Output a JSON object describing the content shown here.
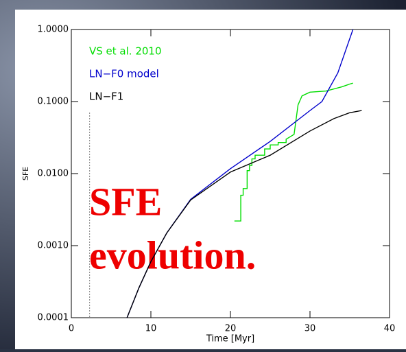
{
  "chart_data": {
    "type": "line",
    "xlabel": "Time [Myr]",
    "ylabel": "SFE",
    "log_y": true,
    "xlim": [
      0,
      40
    ],
    "ylim": [
      0.0001,
      1.0
    ],
    "xticks": [
      0,
      10,
      20,
      30,
      40
    ],
    "yticks": [
      {
        "value": 1.0,
        "label": "1.0000"
      },
      {
        "value": 0.1,
        "label": "0.1000"
      },
      {
        "value": 0.01,
        "label": "0.0100"
      },
      {
        "value": 0.001,
        "label": "0.0010"
      },
      {
        "value": 0.0001,
        "label": "0.0001"
      }
    ],
    "series": [
      {
        "name": "VS et al. 2010",
        "color": "#00dd00",
        "x": [
          20.5,
          21.3,
          21.3,
          21.6,
          21.6,
          22.1,
          22.1,
          22.4,
          22.4,
          22.7,
          22.7,
          23.1,
          23.1,
          23.6,
          23.6,
          24.3,
          24.3,
          25.0,
          25.0,
          26.0,
          26.0,
          27.0,
          27.0,
          28.0,
          28.5,
          29.0,
          30.0,
          32.0,
          34.0,
          35.0,
          35.4
        ],
        "values": [
          0.0022,
          0.0022,
          0.005,
          0.005,
          0.0062,
          0.0062,
          0.011,
          0.011,
          0.013,
          0.013,
          0.016,
          0.016,
          0.018,
          0.018,
          0.018,
          0.018,
          0.022,
          0.022,
          0.025,
          0.025,
          0.027,
          0.027,
          0.03,
          0.035,
          0.09,
          0.12,
          0.135,
          0.14,
          0.16,
          0.175,
          0.18
        ]
      },
      {
        "name": "LN−F0 model",
        "color": "#0000cc",
        "x": [
          7.0,
          8.5,
          10.0,
          12.0,
          15.0,
          20.0,
          25.0,
          30.0,
          31.5,
          33.5,
          35.4
        ],
        "values": [
          0.0001,
          0.00026,
          0.0006,
          0.0015,
          0.0044,
          0.0117,
          0.028,
          0.075,
          0.1,
          0.25,
          1.0
        ]
      },
      {
        "name": "LN−F1",
        "color": "#000000",
        "x": [
          7.0,
          8.5,
          10.0,
          12.0,
          15.0,
          20.0,
          25.0,
          30.0,
          33.0,
          35.0,
          36.5
        ],
        "values": [
          0.0001,
          0.00026,
          0.0006,
          0.0015,
          0.0043,
          0.0105,
          0.018,
          0.039,
          0.058,
          0.07,
          0.075
        ]
      }
    ],
    "vline": {
      "x": 2.3,
      "ymax": 0.07
    },
    "annotation": [
      "SFE",
      "evolution."
    ]
  }
}
